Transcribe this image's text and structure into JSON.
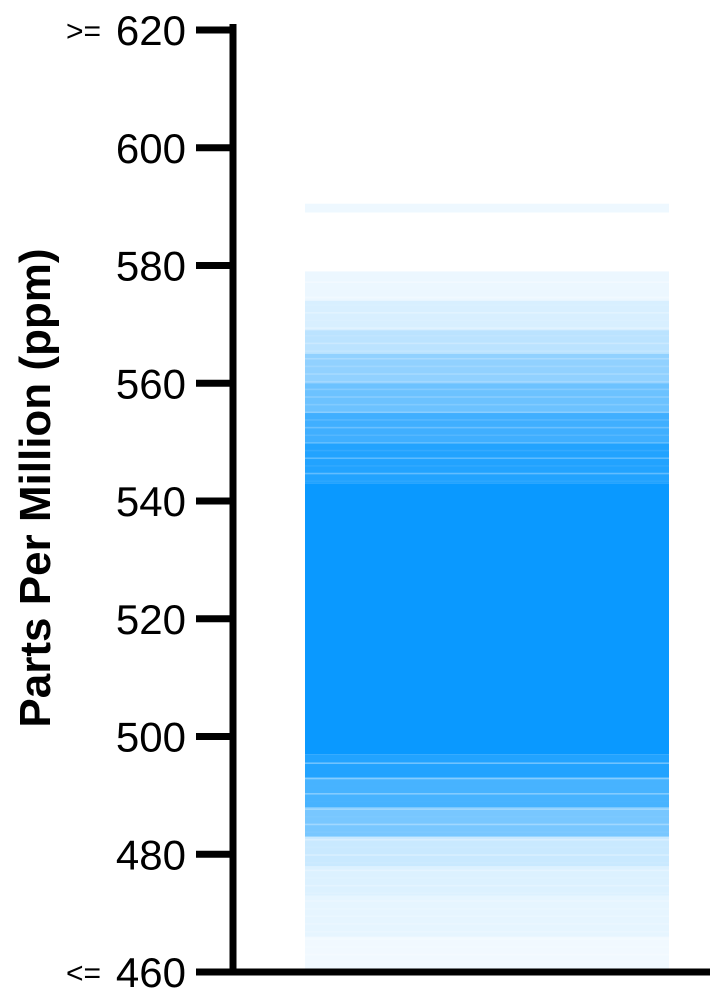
{
  "chart_data": {
    "type": "bar",
    "ylabel": "Parts Per Million (ppm)",
    "ylim": [
      460,
      620
    ],
    "yticks": [
      {
        "value": 620,
        "prefix": ">=",
        "label": "620"
      },
      {
        "value": 600,
        "prefix": "",
        "label": "600"
      },
      {
        "value": 580,
        "prefix": "",
        "label": "580"
      },
      {
        "value": 560,
        "prefix": "",
        "label": "560"
      },
      {
        "value": 540,
        "prefix": "",
        "label": "540"
      },
      {
        "value": 520,
        "prefix": "",
        "label": "520"
      },
      {
        "value": 500,
        "prefix": "",
        "label": "500"
      },
      {
        "value": 480,
        "prefix": "",
        "label": "480"
      },
      {
        "value": 460,
        "prefix": "<=",
        "label": "460"
      }
    ],
    "color": "#0a99ff",
    "band_core": [
      483,
      543
    ],
    "band_levels": [
      {
        "from": 460,
        "to": 466,
        "opacity": 0.06
      },
      {
        "from": 466,
        "to": 473,
        "opacity": 0.1
      },
      {
        "from": 473,
        "to": 478,
        "opacity": 0.14
      },
      {
        "from": 478,
        "to": 483,
        "opacity": 0.22
      },
      {
        "from": 483,
        "to": 488,
        "opacity": 0.55
      },
      {
        "from": 488,
        "to": 493,
        "opacity": 0.75
      },
      {
        "from": 493,
        "to": 497,
        "opacity": 0.9
      },
      {
        "from": 497,
        "to": 543,
        "opacity": 1.0
      },
      {
        "from": 543,
        "to": 550,
        "opacity": 0.9
      },
      {
        "from": 550,
        "to": 555,
        "opacity": 0.78
      },
      {
        "from": 555,
        "to": 560,
        "opacity": 0.6
      },
      {
        "from": 560,
        "to": 565,
        "opacity": 0.45
      },
      {
        "from": 565,
        "to": 569,
        "opacity": 0.28
      },
      {
        "from": 569,
        "to": 574,
        "opacity": 0.16
      },
      {
        "from": 574,
        "to": 579,
        "opacity": 0.08
      },
      {
        "from": 589,
        "to": 590.5,
        "opacity": 0.07
      }
    ]
  }
}
